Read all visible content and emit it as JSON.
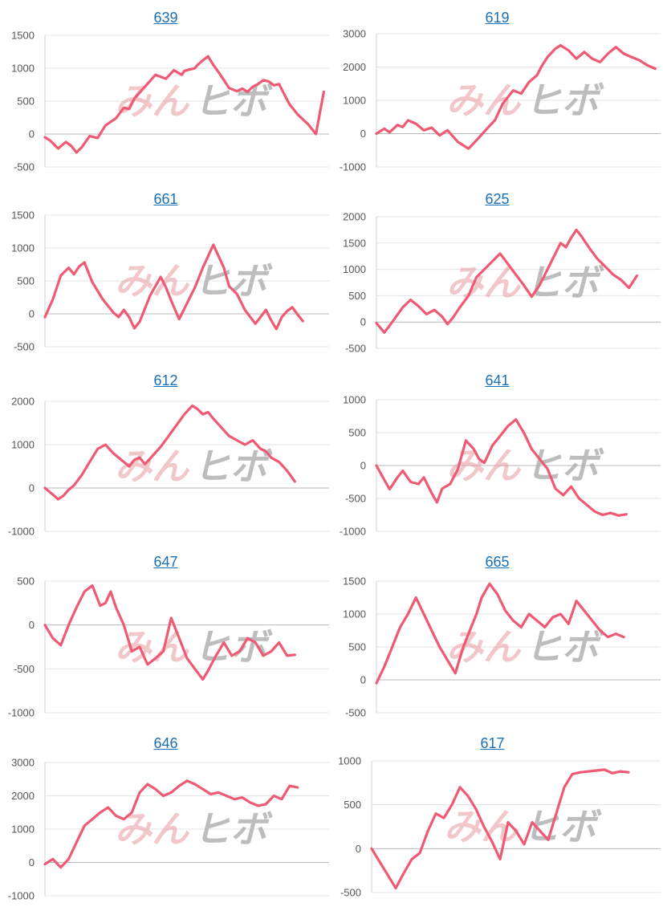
{
  "page": {
    "watermark_left": "みん",
    "watermark_right": "ヒボ"
  },
  "colors": {
    "line": "#ee5a74",
    "title_link": "#1a6fb5",
    "grid": "#e3e3e3"
  },
  "chart_data": [
    {
      "type": "line",
      "title": "639",
      "ylim": [
        -500,
        1500
      ],
      "ticks": [
        1500,
        1000,
        500,
        0,
        -500
      ],
      "x": [
        0,
        2,
        5,
        8,
        10,
        12,
        14,
        17,
        20,
        23,
        27,
        30,
        32,
        34,
        38,
        42,
        46,
        49,
        52,
        53,
        55,
        57,
        58,
        60,
        62,
        64,
        66,
        68,
        70,
        73,
        75,
        77,
        79,
        81,
        83,
        85,
        87,
        89,
        91,
        93,
        96,
        100,
        103,
        106
      ],
      "values": [
        -50,
        -100,
        -220,
        -120,
        -180,
        -280,
        -200,
        -30,
        -60,
        130,
        240,
        400,
        380,
        540,
        720,
        900,
        840,
        970,
        900,
        960,
        980,
        1000,
        1050,
        1120,
        1180,
        1050,
        940,
        820,
        700,
        650,
        690,
        640,
        720,
        760,
        820,
        800,
        740,
        760,
        600,
        450,
        300,
        150,
        0,
        640
      ]
    },
    {
      "type": "line",
      "title": "619",
      "ylim": [
        -1000,
        3000
      ],
      "ticks": [
        3000,
        2000,
        1000,
        0,
        -1000
      ],
      "x": [
        0,
        3,
        5,
        8,
        10,
        12,
        15,
        18,
        21,
        24,
        27,
        31,
        35,
        38,
        42,
        45,
        48,
        52,
        55,
        58,
        61,
        63,
        65,
        68,
        70,
        73,
        76,
        79,
        82,
        85,
        88,
        91,
        94,
        97,
        100,
        103,
        106
      ],
      "values": [
        0,
        150,
        40,
        260,
        200,
        400,
        300,
        100,
        180,
        -50,
        100,
        -250,
        -450,
        -200,
        150,
        400,
        900,
        1300,
        1200,
        1550,
        1750,
        2050,
        2300,
        2550,
        2650,
        2500,
        2250,
        2450,
        2250,
        2150,
        2400,
        2600,
        2400,
        2300,
        2200,
        2050,
        1950
      ]
    },
    {
      "type": "line",
      "title": "661",
      "ylim": [
        -500,
        1500
      ],
      "ticks": [
        1500,
        1000,
        500,
        0,
        -500
      ],
      "x": [
        0,
        3,
        6,
        9,
        11,
        13,
        15,
        18,
        22,
        26,
        28,
        30,
        32,
        34,
        36,
        40,
        44,
        46,
        48,
        51,
        54,
        57,
        60,
        64,
        68,
        70,
        73,
        76,
        80,
        84,
        86,
        88,
        90,
        92,
        94,
        96,
        98
      ],
      "values": [
        -50,
        220,
        580,
        700,
        600,
        720,
        780,
        480,
        220,
        20,
        -50,
        60,
        -50,
        -220,
        -120,
        280,
        560,
        400,
        200,
        -80,
        160,
        400,
        700,
        1050,
        700,
        420,
        300,
        60,
        -150,
        60,
        -100,
        -230,
        -50,
        40,
        100,
        -10,
        -110
      ]
    },
    {
      "type": "line",
      "title": "625",
      "ylim": [
        -500,
        2000
      ],
      "ticks": [
        2000,
        1500,
        1000,
        500,
        0,
        -500
      ],
      "x": [
        0,
        3,
        6,
        10,
        13,
        16,
        19,
        22,
        25,
        27,
        29,
        32,
        35,
        38,
        41,
        44,
        47,
        50,
        53,
        56,
        59,
        62,
        65,
        68,
        70,
        72,
        74,
        76,
        78,
        81,
        84,
        87,
        90,
        93,
        96,
        99
      ],
      "values": [
        -20,
        -200,
        0,
        280,
        420,
        300,
        150,
        230,
        100,
        -40,
        80,
        300,
        500,
        850,
        1000,
        1150,
        1300,
        1100,
        900,
        700,
        480,
        700,
        1000,
        1300,
        1500,
        1420,
        1600,
        1750,
        1620,
        1400,
        1200,
        1050,
        900,
        800,
        650,
        880
      ]
    },
    {
      "type": "line",
      "title": "612",
      "ylim": [
        -1000,
        2000
      ],
      "ticks": [
        2000,
        1000,
        0,
        -1000
      ],
      "x": [
        0,
        3,
        5,
        7,
        9,
        11,
        14,
        17,
        20,
        23,
        26,
        29,
        32,
        34,
        36,
        38,
        41,
        44,
        47,
        50,
        53,
        56,
        58,
        60,
        62,
        64,
        67,
        70,
        73,
        76,
        79,
        82,
        84,
        86,
        89,
        92,
        95
      ],
      "values": [
        0,
        -150,
        -260,
        -180,
        -40,
        60,
        300,
        600,
        900,
        1000,
        800,
        650,
        500,
        650,
        700,
        550,
        750,
        950,
        1200,
        1450,
        1700,
        1900,
        1820,
        1700,
        1750,
        1600,
        1400,
        1200,
        1100,
        1000,
        1100,
        900,
        850,
        700,
        600,
        400,
        150
      ]
    },
    {
      "type": "line",
      "title": "641",
      "ylim": [
        -1000,
        1000
      ],
      "ticks": [
        1000,
        500,
        0,
        -500,
        -1000
      ],
      "x": [
        0,
        3,
        5,
        8,
        10,
        13,
        16,
        18,
        21,
        23,
        25,
        28,
        31,
        34,
        37,
        39,
        41,
        44,
        47,
        50,
        53,
        56,
        59,
        62,
        65,
        68,
        71,
        74,
        77,
        80,
        83,
        86,
        89,
        92,
        95
      ],
      "values": [
        0,
        -220,
        -360,
        -180,
        -80,
        -250,
        -280,
        -180,
        -420,
        -560,
        -350,
        -280,
        -50,
        380,
        250,
        100,
        40,
        300,
        450,
        600,
        700,
        500,
        250,
        100,
        -50,
        -350,
        -450,
        -320,
        -500,
        -600,
        -700,
        -750,
        -720,
        -760,
        -740
      ]
    },
    {
      "type": "line",
      "title": "647",
      "ylim": [
        -1000,
        500
      ],
      "ticks": [
        500,
        0,
        -500,
        -1000
      ],
      "x": [
        0,
        3,
        6,
        9,
        12,
        15,
        18,
        21,
        23,
        25,
        27,
        30,
        33,
        36,
        39,
        42,
        45,
        48,
        51,
        54,
        57,
        60,
        62,
        65,
        68,
        71,
        74,
        77,
        80,
        83,
        86,
        89,
        92,
        95
      ],
      "values": [
        0,
        -150,
        -230,
        0,
        200,
        380,
        450,
        220,
        250,
        380,
        200,
        0,
        -300,
        -250,
        -450,
        -380,
        -300,
        80,
        -150,
        -380,
        -500,
        -620,
        -520,
        -350,
        -200,
        -350,
        -300,
        -150,
        -200,
        -350,
        -300,
        -200,
        -350,
        -340
      ]
    },
    {
      "type": "line",
      "title": "665",
      "ylim": [
        -500,
        1500
      ],
      "ticks": [
        1500,
        1000,
        500,
        0,
        -500
      ],
      "x": [
        0,
        3,
        6,
        9,
        12,
        15,
        18,
        21,
        24,
        27,
        30,
        33,
        36,
        38,
        40,
        43,
        46,
        49,
        52,
        55,
        58,
        61,
        64,
        67,
        70,
        73,
        76,
        79,
        82,
        85,
        88,
        91,
        94
      ],
      "values": [
        -50,
        200,
        500,
        800,
        1000,
        1250,
        1000,
        750,
        500,
        300,
        100,
        500,
        800,
        1000,
        1250,
        1460,
        1300,
        1050,
        900,
        800,
        1000,
        900,
        800,
        950,
        1000,
        850,
        1200,
        1050,
        900,
        750,
        650,
        700,
        650
      ]
    },
    {
      "type": "line",
      "title": "646",
      "ylim": [
        -1000,
        3000
      ],
      "ticks": [
        3000,
        2000,
        1000,
        0,
        -1000
      ],
      "x": [
        0,
        3,
        6,
        9,
        12,
        15,
        18,
        21,
        24,
        27,
        30,
        33,
        36,
        39,
        42,
        45,
        48,
        51,
        54,
        57,
        60,
        63,
        66,
        69,
        72,
        75,
        78,
        81,
        84,
        87,
        90,
        93,
        96
      ],
      "values": [
        -50,
        100,
        -150,
        100,
        600,
        1100,
        1300,
        1500,
        1650,
        1400,
        1300,
        1500,
        2100,
        2350,
        2200,
        2000,
        2100,
        2300,
        2450,
        2350,
        2200,
        2050,
        2100,
        2000,
        1900,
        1950,
        1800,
        1700,
        1750,
        2000,
        1900,
        2300,
        2250
      ]
    },
    {
      "type": "line",
      "title": "617",
      "ylim": [
        -500,
        1000
      ],
      "ticks": [
        1000,
        500,
        0,
        -500
      ],
      "x": [
        0,
        3,
        6,
        9,
        12,
        15,
        18,
        21,
        24,
        27,
        30,
        33,
        36,
        39,
        42,
        45,
        48,
        51,
        54,
        57,
        60,
        63,
        66,
        69,
        72,
        75,
        78,
        81,
        84,
        87,
        90,
        93,
        96
      ],
      "values": [
        0,
        -150,
        -300,
        -450,
        -280,
        -120,
        -50,
        200,
        400,
        350,
        500,
        700,
        600,
        450,
        250,
        80,
        -120,
        300,
        200,
        50,
        300,
        200,
        100,
        400,
        700,
        850,
        870,
        880,
        890,
        900,
        860,
        880,
        870
      ]
    }
  ]
}
